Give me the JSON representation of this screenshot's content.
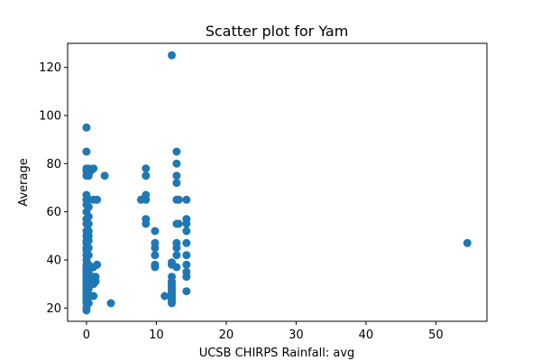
{
  "chart_data": {
    "type": "scatter",
    "title": "Scatter plot for Yam",
    "xlabel": "UCSB CHIRPS Rainfall: avg",
    "ylabel": "Average",
    "xlim": [
      -2.7,
      57.3
    ],
    "ylim": [
      14.5,
      130
    ],
    "xticks": [
      0,
      10,
      20,
      30,
      40,
      50
    ],
    "yticks": [
      20,
      40,
      60,
      80,
      100,
      120
    ],
    "grid": false,
    "point_color": "#1f77b4",
    "points": [
      [
        0,
        19
      ],
      [
        0,
        20
      ],
      [
        0,
        22
      ],
      [
        0,
        23
      ],
      [
        0,
        24
      ],
      [
        0,
        25
      ],
      [
        0,
        26
      ],
      [
        0,
        27
      ],
      [
        0,
        28
      ],
      [
        0,
        29
      ],
      [
        0,
        30
      ],
      [
        0,
        31
      ],
      [
        0,
        32
      ],
      [
        0,
        33
      ],
      [
        0,
        34
      ],
      [
        0,
        35
      ],
      [
        0,
        36
      ],
      [
        0,
        37
      ],
      [
        0,
        38
      ],
      [
        0,
        40
      ],
      [
        0,
        42
      ],
      [
        0,
        44
      ],
      [
        0,
        45
      ],
      [
        0,
        47
      ],
      [
        0,
        48
      ],
      [
        0,
        50
      ],
      [
        0,
        52
      ],
      [
        0,
        55
      ],
      [
        0,
        57
      ],
      [
        0,
        60
      ],
      [
        0,
        63
      ],
      [
        0,
        65
      ],
      [
        0,
        67
      ],
      [
        0,
        75
      ],
      [
        0,
        77
      ],
      [
        0,
        78
      ],
      [
        0,
        85
      ],
      [
        0,
        95
      ],
      [
        0.3,
        22
      ],
      [
        0.3,
        25
      ],
      [
        0.3,
        28
      ],
      [
        0.3,
        30
      ],
      [
        0.3,
        33
      ],
      [
        0.3,
        35
      ],
      [
        0.3,
        38
      ],
      [
        0.3,
        42
      ],
      [
        0.3,
        45
      ],
      [
        0.3,
        48
      ],
      [
        0.3,
        50
      ],
      [
        0.3,
        52
      ],
      [
        0.3,
        55
      ],
      [
        0.3,
        58
      ],
      [
        0.3,
        62
      ],
      [
        0.3,
        65
      ],
      [
        0.3,
        75
      ],
      [
        0.3,
        78
      ],
      [
        0.6,
        25
      ],
      [
        0.6,
        32
      ],
      [
        0.6,
        37
      ],
      [
        0.6,
        77
      ],
      [
        1,
        25
      ],
      [
        1,
        30
      ],
      [
        1,
        33
      ],
      [
        1,
        37
      ],
      [
        1,
        65
      ],
      [
        1,
        78
      ],
      [
        1.3,
        31
      ],
      [
        1.3,
        33
      ],
      [
        1.5,
        38
      ],
      [
        1.5,
        65
      ],
      [
        2.6,
        75
      ],
      [
        3.5,
        22
      ],
      [
        7.8,
        65
      ],
      [
        8.5,
        55
      ],
      [
        8.5,
        57
      ],
      [
        8.5,
        65
      ],
      [
        8.5,
        67
      ],
      [
        8.5,
        75
      ],
      [
        8.5,
        78
      ],
      [
        9.8,
        37
      ],
      [
        9.8,
        38
      ],
      [
        9.8,
        42
      ],
      [
        9.8,
        45
      ],
      [
        9.8,
        47
      ],
      [
        9.8,
        52
      ],
      [
        11.2,
        25
      ],
      [
        12.2,
        22
      ],
      [
        12.2,
        23
      ],
      [
        12.2,
        24
      ],
      [
        12.2,
        25
      ],
      [
        12.2,
        26
      ],
      [
        12.2,
        27
      ],
      [
        12.2,
        28
      ],
      [
        12.2,
        29
      ],
      [
        12.2,
        30
      ],
      [
        12.2,
        31
      ],
      [
        12.2,
        33
      ],
      [
        12.2,
        38
      ],
      [
        12.2,
        39
      ],
      [
        12.2,
        125
      ],
      [
        12.9,
        37
      ],
      [
        12.9,
        42
      ],
      [
        12.9,
        45
      ],
      [
        12.9,
        47
      ],
      [
        12.9,
        55
      ],
      [
        12.9,
        65
      ],
      [
        12.9,
        72
      ],
      [
        12.9,
        75
      ],
      [
        12.9,
        80
      ],
      [
        12.9,
        85
      ],
      [
        13.2,
        55
      ],
      [
        13.2,
        65
      ],
      [
        14.3,
        27
      ],
      [
        14.3,
        33
      ],
      [
        14.3,
        35
      ],
      [
        14.3,
        38
      ],
      [
        14.3,
        42
      ],
      [
        14.3,
        47
      ],
      [
        14.3,
        52
      ],
      [
        14.3,
        55
      ],
      [
        14.3,
        57
      ],
      [
        14.3,
        65
      ],
      [
        54.5,
        47
      ]
    ]
  }
}
